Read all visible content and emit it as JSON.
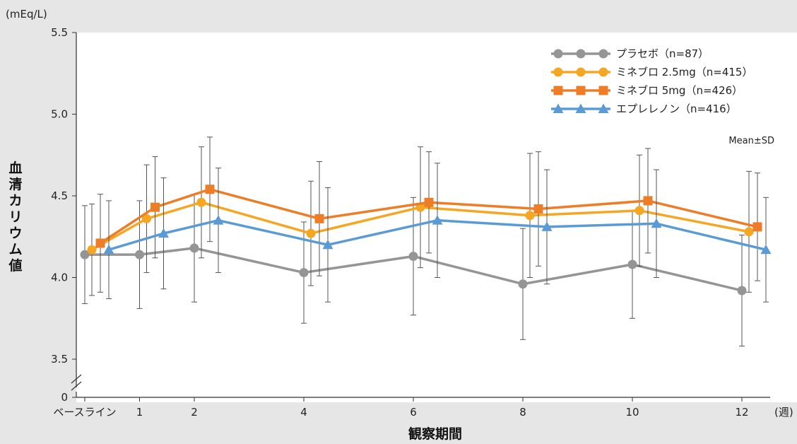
{
  "chart_data": {
    "type": "line",
    "y_unit": "(mEq/L)",
    "ylabel": "血清カリウム値",
    "xlabel": "観察期間",
    "x_unit": "(週)",
    "ylim": [
      3.5,
      5.5
    ],
    "y_ticks": [
      "5.5",
      "5.0",
      "4.5",
      "4.0",
      "3.5"
    ],
    "y_zero_label": "0",
    "x_positions": [
      0,
      1,
      2,
      4,
      6,
      8,
      10,
      12
    ],
    "x_tick_labels": [
      "ベースライン",
      "1",
      "2",
      "4",
      "6",
      "8",
      "10",
      "12"
    ],
    "note": "Mean±SD",
    "series": [
      {
        "name": "プラセボ（n=87）",
        "color": "#959595",
        "marker": "circle",
        "mean": [
          4.14,
          4.14,
          4.18,
          4.03,
          4.13,
          3.96,
          4.08,
          3.92
        ],
        "sd": [
          0.3,
          0.33,
          0.33,
          0.31,
          0.36,
          0.34,
          0.33,
          0.34
        ]
      },
      {
        "name": "ミネブロ 2.5mg（n=415）",
        "color": "#f5a623",
        "marker": "circle",
        "mean": [
          4.17,
          4.36,
          4.46,
          4.27,
          4.43,
          4.38,
          4.41,
          4.28
        ],
        "sd": [
          0.28,
          0.33,
          0.34,
          0.32,
          0.37,
          0.38,
          0.34,
          0.37
        ]
      },
      {
        "name": "ミネブロ 5mg（n=426）",
        "color": "#ee7d27",
        "marker": "square",
        "mean": [
          4.21,
          4.43,
          4.54,
          4.36,
          4.46,
          4.42,
          4.47,
          4.31
        ],
        "sd": [
          0.3,
          0.31,
          0.32,
          0.35,
          0.31,
          0.35,
          0.32,
          0.33
        ]
      },
      {
        "name": "エプレレノン（n=416）",
        "color": "#5b9bd5",
        "marker": "triangle",
        "mean": [
          4.17,
          4.27,
          4.35,
          4.2,
          4.35,
          4.31,
          4.33,
          4.17
        ],
        "sd": [
          0.3,
          0.34,
          0.32,
          0.35,
          0.35,
          0.35,
          0.33,
          0.32
        ]
      }
    ]
  }
}
